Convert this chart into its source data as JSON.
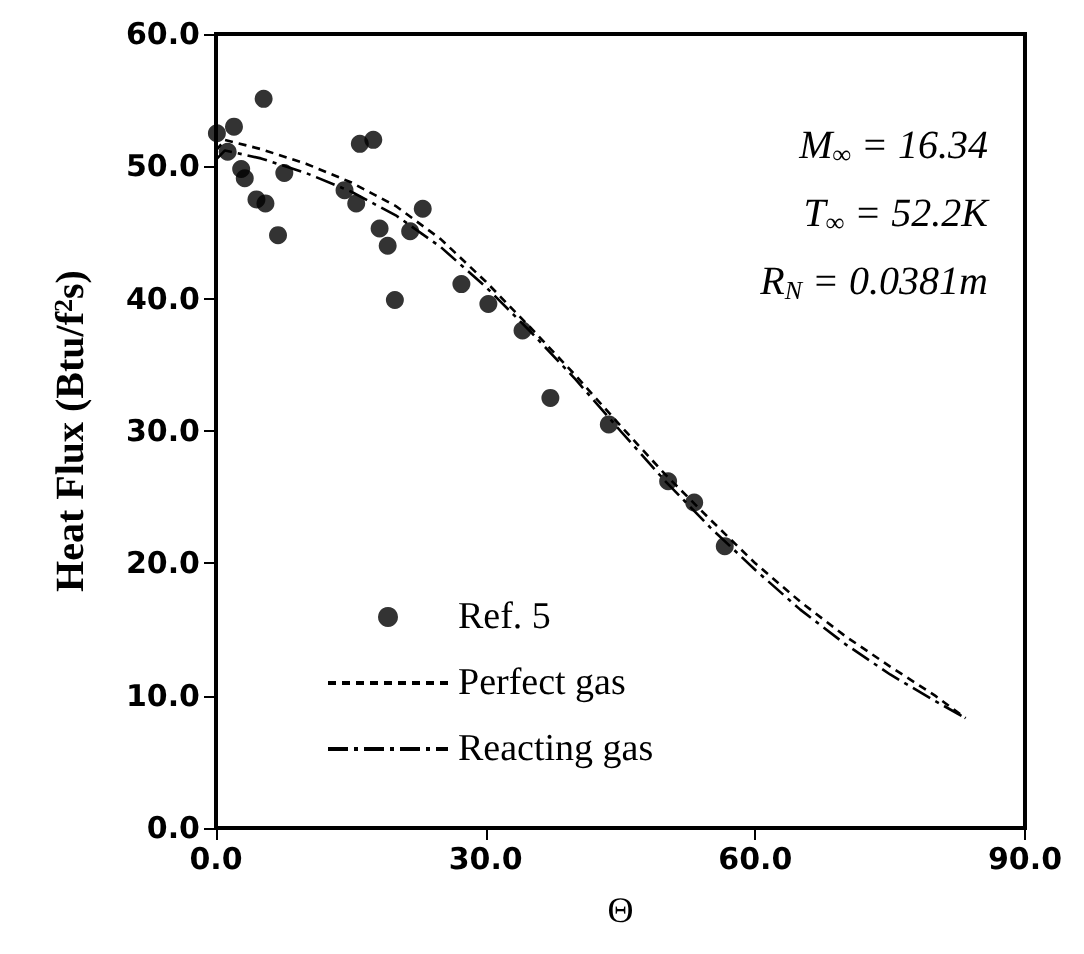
{
  "chart_data": {
    "type": "scatter",
    "xlabel": "Θ",
    "ylabel": "Heat Flux (Btu/f$^{2}$s)",
    "xlim": [
      0,
      90
    ],
    "xticks": [
      {
        "value": 0,
        "label": "0.0"
      },
      {
        "value": 30,
        "label": "30.0"
      },
      {
        "value": 60,
        "label": "60.0"
      },
      {
        "value": 90,
        "label": "90.0"
      }
    ],
    "ylim": [
      0,
      60
    ],
    "yticks": [
      {
        "value": 0,
        "label": "0.0"
      },
      {
        "value": 10,
        "label": "10.0"
      },
      {
        "value": 20,
        "label": "20.0"
      },
      {
        "value": 30,
        "label": "30.0"
      },
      {
        "value": 40,
        "label": "40.0"
      },
      {
        "value": 50,
        "label": "50.0"
      },
      {
        "value": 60,
        "label": "60.0"
      }
    ],
    "grid": false,
    "legend": "bottom left",
    "annotations": [
      "M$_{∞}$ = 16.34",
      "T$_{∞}$ = 52.2K",
      "R$_{N}$ = 0.0381m"
    ],
    "series": [
      {
        "name": "Ref. 5",
        "marker": "circle",
        "color": "#000000",
        "x": [
          0.1,
          2.0,
          1.3,
          5.3,
          2.8,
          3.2,
          4.5,
          5.5,
          6.9,
          7.6,
          16.0,
          17.5,
          14.3,
          15.6,
          18.2,
          19.1,
          19.9,
          21.6,
          23.0,
          27.3,
          30.3,
          34.1,
          37.2,
          43.7,
          50.3,
          53.2,
          56.6
        ],
        "values": [
          52.5,
          53.0,
          51.1,
          55.1,
          49.8,
          49.1,
          47.5,
          47.2,
          44.8,
          49.5,
          51.7,
          52.0,
          48.2,
          47.2,
          45.3,
          44.0,
          39.9,
          45.1,
          46.8,
          41.1,
          39.6,
          37.6,
          32.5,
          30.5,
          26.2,
          24.6,
          21.3
        ]
      },
      {
        "name": "Perfect gas",
        "type": "line",
        "line_style": "dashed",
        "marker": "none",
        "color": "#000000",
        "x": [
          0,
          1,
          5,
          10,
          15,
          20,
          25,
          30,
          35,
          40,
          45,
          50,
          55,
          60,
          65,
          70,
          75,
          80,
          83.4
        ],
        "values": [
          51.2,
          52.0,
          51.3,
          50.2,
          48.8,
          47.0,
          44.5,
          41.3,
          37.8,
          34.2,
          30.4,
          26.7,
          23.3,
          20.0,
          17.1,
          14.5,
          12.2,
          10.0,
          8.3
        ]
      },
      {
        "name": "Reacting gas",
        "type": "line",
        "line_style": "dashdot",
        "marker": "none",
        "color": "#000000",
        "x": [
          0,
          1,
          5,
          10,
          15,
          20,
          25,
          30,
          35,
          40,
          45,
          50,
          55,
          60,
          65,
          70,
          75,
          80,
          83.4
        ],
        "values": [
          50.5,
          51.2,
          50.6,
          49.5,
          48.1,
          46.3,
          43.9,
          40.9,
          37.5,
          33.9,
          30.0,
          26.2,
          22.7,
          19.5,
          16.5,
          13.9,
          11.6,
          9.6,
          8.3
        ]
      }
    ]
  }
}
